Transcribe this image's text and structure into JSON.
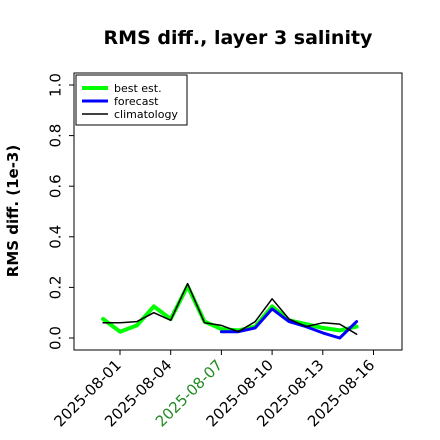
{
  "chart_data": {
    "type": "line",
    "title": "RMS diff., layer 3 salinity",
    "xlabel": "",
    "ylabel": "RMS diff. (1e-3)",
    "ylim": [
      -0.03,
      1.05
    ],
    "y_ticks": [
      "0.0",
      "0.2",
      "0.4",
      "0.6",
      "0.8",
      "1.0"
    ],
    "y_tick_values": [
      0.0,
      0.2,
      0.4,
      0.6,
      0.8,
      1.0
    ],
    "x_ticks": [
      "2025-08-01",
      "2025-08-04",
      "2025-08-07",
      "2025-08-10",
      "2025-08-13",
      "2025-08-16"
    ],
    "highlight_tick": "2025-08-07",
    "highlight_color": "#228B22",
    "grid": false,
    "legend_position": "top-left",
    "series": [
      {
        "name": "best est.",
        "color": "#00ff00",
        "x": [
          "2025-07-31",
          "2025-08-01",
          "2025-08-02",
          "2025-08-03",
          "2025-08-04",
          "2025-08-05",
          "2025-08-06",
          "2025-08-07",
          "2025-08-08",
          "2025-08-09",
          "2025-08-10",
          "2025-08-11",
          "2025-08-12",
          "2025-08-13",
          "2025-08-14",
          "2025-08-15"
        ],
        "values": [
          0.075,
          0.025,
          0.05,
          0.125,
          0.075,
          0.205,
          0.065,
          0.035,
          0.03,
          0.045,
          0.125,
          0.07,
          0.055,
          0.04,
          0.03,
          0.045
        ]
      },
      {
        "name": "forecast",
        "color": "#0000ff",
        "x": [
          "2025-08-07",
          "2025-08-08",
          "2025-08-09",
          "2025-08-10",
          "2025-08-11",
          "2025-08-12",
          "2025-08-13",
          "2025-08-14",
          "2025-08-15"
        ],
        "values": [
          0.025,
          0.025,
          0.04,
          0.115,
          0.065,
          0.045,
          0.02,
          0.0,
          0.065
        ]
      },
      {
        "name": "climatology",
        "color": "#000000",
        "x": [
          "2025-07-31",
          "2025-08-01",
          "2025-08-02",
          "2025-08-03",
          "2025-08-04",
          "2025-08-05",
          "2025-08-06",
          "2025-08-07",
          "2025-08-08",
          "2025-08-09",
          "2025-08-10",
          "2025-08-11",
          "2025-08-12",
          "2025-08-13",
          "2025-08-14",
          "2025-08-15"
        ],
        "values": [
          0.06,
          0.06,
          0.065,
          0.1,
          0.07,
          0.215,
          0.06,
          0.05,
          0.025,
          0.065,
          0.155,
          0.075,
          0.045,
          0.06,
          0.055,
          0.015
        ]
      }
    ]
  }
}
